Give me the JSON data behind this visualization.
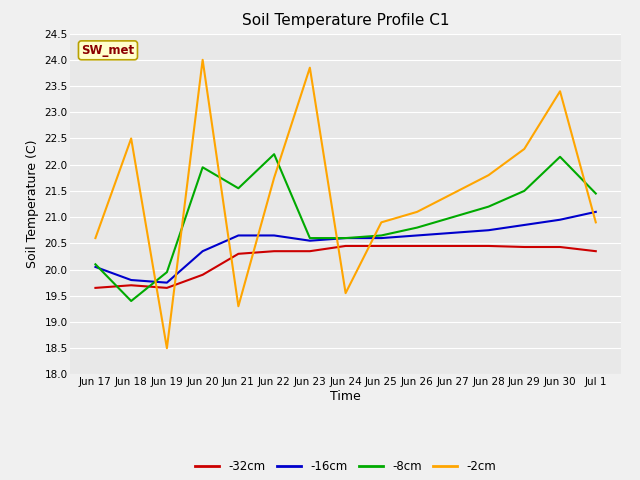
{
  "title": "Soil Temperature Profile C1",
  "xlabel": "Time",
  "ylabel": "Soil Temperature (C)",
  "ylim": [
    18.0,
    24.5
  ],
  "fig_facecolor": "#f0f0f0",
  "ax_facecolor": "#e8e8e8",
  "annotation_text": "SW_met",
  "annotation_bg": "#ffffcc",
  "annotation_border": "#b8a000",
  "annotation_text_color": "#8b0000",
  "x_tick_labels": [
    "Jun 17",
    "Jun 18",
    "Jun 19",
    "Jun 20",
    "Jun 21",
    "Jun 22",
    "Jun 23",
    "Jun 24",
    "Jun 25",
    "Jun 26",
    "Jun 27",
    "Jun 28",
    "Jun 29",
    "Jun 30",
    "Jul 1"
  ],
  "x_values": [
    0,
    1,
    2,
    3,
    4,
    5,
    6,
    7,
    8,
    9,
    10,
    11,
    12,
    13,
    14
  ],
  "series": [
    {
      "label": "-32cm",
      "color": "#cc0000",
      "linewidth": 1.5,
      "y": [
        19.65,
        19.7,
        19.65,
        19.9,
        20.3,
        20.35,
        20.35,
        20.45,
        20.45,
        20.45,
        20.45,
        20.45,
        20.43,
        20.43,
        20.35
      ]
    },
    {
      "label": "-16cm",
      "color": "#0000cc",
      "linewidth": 1.5,
      "y": [
        20.05,
        19.8,
        19.75,
        20.35,
        20.65,
        20.65,
        20.55,
        20.6,
        20.6,
        20.65,
        20.7,
        20.75,
        20.85,
        20.95,
        21.1
      ]
    },
    {
      "label": "-8cm",
      "color": "#00aa00",
      "linewidth": 1.5,
      "y": [
        20.1,
        19.4,
        19.95,
        21.95,
        21.55,
        22.2,
        20.6,
        20.6,
        20.65,
        20.8,
        21.0,
        21.2,
        21.5,
        22.15,
        21.45
      ]
    },
    {
      "label": "-2cm",
      "color": "#ffa500",
      "linewidth": 1.5,
      "y": [
        20.6,
        22.5,
        18.5,
        24.0,
        19.3,
        21.75,
        23.85,
        19.55,
        20.9,
        21.1,
        21.45,
        21.8,
        22.3,
        23.4,
        20.9
      ]
    }
  ],
  "title_fontsize": 11,
  "axis_label_fontsize": 9,
  "tick_fontsize": 7.5,
  "annotation_fontsize": 8.5,
  "legend_fontsize": 8.5,
  "yticks": [
    18.0,
    18.5,
    19.0,
    19.5,
    20.0,
    20.5,
    21.0,
    21.5,
    22.0,
    22.5,
    23.0,
    23.5,
    24.0,
    24.5
  ]
}
